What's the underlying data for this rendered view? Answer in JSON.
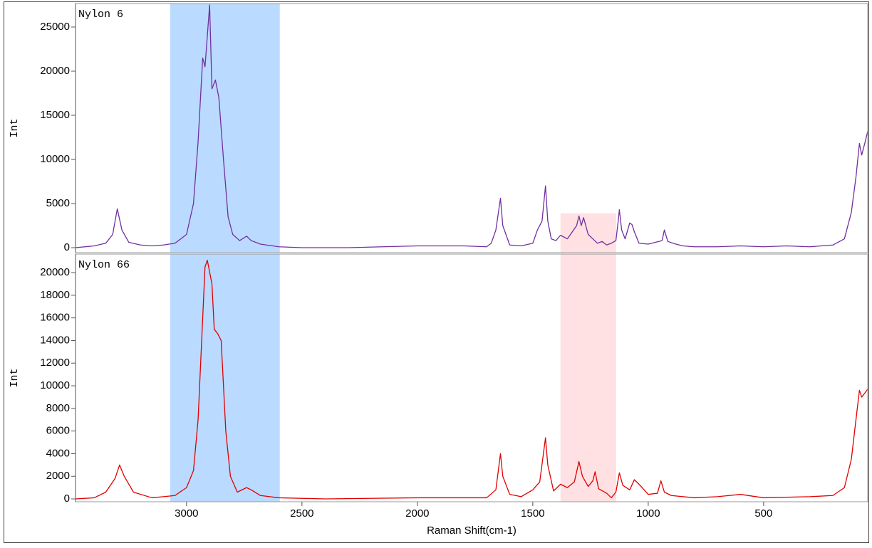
{
  "chart_data": [
    {
      "type": "line",
      "y_label": "Int",
      "x": [
        3481,
        3400,
        3350,
        3320,
        3300,
        3280,
        3250,
        3200,
        3150,
        3100,
        3050,
        3000,
        2970,
        2950,
        2930,
        2920,
        2910,
        2900,
        2890,
        2875,
        2860,
        2840,
        2820,
        2800,
        2770,
        2740,
        2720,
        2680,
        2600,
        2500,
        2300,
        2000,
        1800,
        1700,
        1680,
        1660,
        1640,
        1630,
        1600,
        1550,
        1500,
        1480,
        1460,
        1445,
        1435,
        1420,
        1400,
        1380,
        1350,
        1310,
        1300,
        1290,
        1280,
        1260,
        1240,
        1220,
        1200,
        1180,
        1160,
        1140,
        1130,
        1125,
        1115,
        1100,
        1080,
        1070,
        1060,
        1040,
        1000,
        940,
        930,
        915,
        880,
        850,
        800,
        700,
        600,
        500,
        400,
        300,
        200,
        150,
        120,
        100,
        85,
        75,
        60,
        49
      ],
      "series": [
        {
          "name": "Nylon 6",
          "color": "#7030a0",
          "values": [
            0,
            200,
            500,
            1500,
            4400,
            2000,
            600,
            300,
            200,
            300,
            500,
            1500,
            5000,
            12000,
            21500,
            20500,
            24000,
            27500,
            18000,
            19000,
            17000,
            10000,
            3500,
            1500,
            800,
            1300,
            800,
            400,
            100,
            0,
            0,
            200,
            200,
            100,
            500,
            2000,
            5600,
            2500,
            300,
            200,
            500,
            2000,
            3000,
            7000,
            3000,
            1000,
            800,
            1400,
            1000,
            2500,
            3600,
            2500,
            3400,
            1500,
            1000,
            500,
            700,
            300,
            500,
            800,
            3000,
            4300,
            2000,
            1000,
            2800,
            2600,
            1800,
            500,
            400,
            800,
            2000,
            700,
            400,
            200,
            100,
            100,
            200,
            100,
            200,
            100,
            300,
            1000,
            4000,
            8000,
            11800,
            10500,
            12000,
            13200
          ]
        }
      ],
      "xlim": [
        3481,
        49
      ],
      "ylim": [
        -565,
        27660
      ],
      "yticks": [
        0,
        5000,
        10000,
        15000,
        20000,
        25000
      ],
      "spans": [
        {
          "x": [
            3071,
            2596
          ],
          "color": "#bbdaff"
        },
        {
          "x": [
            1380,
            1139
          ],
          "y": [
            -565,
            3900
          ],
          "color": "#ffe0e3"
        }
      ]
    },
    {
      "type": "line",
      "y_label": "Int",
      "x_label": "Raman Shift(cm-1)",
      "x": [
        3481,
        3400,
        3350,
        3310,
        3290,
        3270,
        3230,
        3150,
        3100,
        3050,
        3000,
        2970,
        2950,
        2930,
        2920,
        2910,
        2890,
        2880,
        2865,
        2850,
        2830,
        2810,
        2780,
        2740,
        2720,
        2680,
        2600,
        2400,
        2000,
        1700,
        1660,
        1640,
        1630,
        1600,
        1550,
        1500,
        1470,
        1445,
        1435,
        1410,
        1380,
        1350,
        1320,
        1300,
        1285,
        1260,
        1240,
        1230,
        1215,
        1180,
        1160,
        1140,
        1125,
        1110,
        1080,
        1060,
        1040,
        1000,
        960,
        945,
        930,
        900,
        800,
        700,
        600,
        500,
        300,
        200,
        150,
        120,
        100,
        85,
        75,
        60,
        49
      ],
      "series": [
        {
          "name": "Nylon 66",
          "color": "#e00000",
          "values": [
            0,
            100,
            600,
            1800,
            3000,
            2000,
            600,
            100,
            200,
            300,
            1000,
            2500,
            7000,
            16000,
            20500,
            21100,
            19000,
            15000,
            14600,
            14000,
            6000,
            2000,
            600,
            1000,
            800,
            300,
            100,
            0,
            100,
            100,
            800,
            4000,
            2000,
            400,
            200,
            800,
            1500,
            5400,
            3000,
            700,
            1300,
            1000,
            1500,
            3300,
            2000,
            1100,
            1600,
            2400,
            900,
            500,
            100,
            600,
            2300,
            1200,
            800,
            1700,
            1300,
            400,
            500,
            1600,
            600,
            300,
            100,
            200,
            400,
            100,
            200,
            300,
            1000,
            3500,
            7000,
            9600,
            9000,
            9400,
            9700
          ]
        }
      ],
      "xlim": [
        3481,
        49
      ],
      "ylim": [
        -250,
        21640
      ],
      "xticks": [
        3000,
        2500,
        2000,
        1500,
        1000,
        500
      ],
      "yticks": [
        0,
        2000,
        4000,
        6000,
        8000,
        10000,
        12000,
        14000,
        16000,
        18000,
        20000
      ],
      "spans": [
        {
          "x": [
            3071,
            2596
          ],
          "color": "#bbdaff"
        },
        {
          "x": [
            1380,
            1139
          ],
          "color": "#ffe0e3"
        }
      ]
    }
  ]
}
